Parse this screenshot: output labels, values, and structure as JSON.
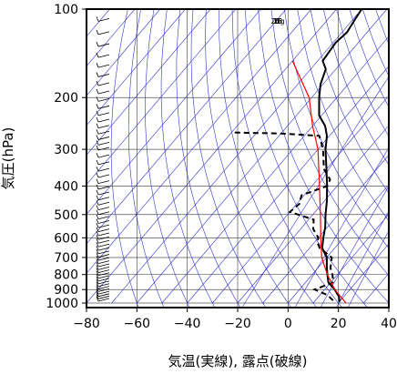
{
  "chart_data": {
    "type": "line",
    "chart_kind": "skew-T log-p thermodynamic diagram",
    "xlabel": "気温(実線), 露点(破線)",
    "ylabel": "気圧(hPa)",
    "x_ticks": [
      "−80",
      "−60",
      "−40",
      "−20",
      "0",
      "20",
      "40"
    ],
    "x_tick_values": [
      -80,
      -60,
      -40,
      -20,
      0,
      20,
      40
    ],
    "xlim": [
      -80,
      40
    ],
    "y_ticks": [
      "100",
      "200",
      "300",
      "400",
      "500",
      "600",
      "700",
      "800",
      "900",
      "1000"
    ],
    "y_tick_values": [
      100,
      200,
      300,
      400,
      500,
      600,
      700,
      800,
      900,
      1000
    ],
    "ylim": [
      100,
      1050
    ],
    "y_scale": "log",
    "mixing_ratio_labels": [
      "1",
      "5",
      "10",
      "15",
      "20g"
    ],
    "mixing_ratio_values": [
      1,
      5,
      10,
      15,
      20
    ],
    "colors": {
      "isotherm_isobar": "#555555",
      "adiabats": "#3333cc",
      "parcel": "#ff0000",
      "temperature": "#000000",
      "dewpoint": "#000000"
    },
    "series": [
      {
        "style": "solid",
        "pressure": [
          990,
          950,
          900,
          850,
          800,
          750,
          700,
          650,
          600,
          550,
          500,
          450,
          400,
          350,
          300,
          270,
          250,
          230,
          200,
          180,
          160,
          150,
          130,
          120,
          110,
          100
        ],
        "values": [
          20,
          18,
          14,
          9,
          6,
          3,
          0,
          -5,
          -8,
          -11,
          -15,
          -19,
          -24,
          -30,
          -37,
          -41,
          -45,
          -51,
          -57,
          -61,
          -64,
          -68,
          -69,
          -68,
          -69,
          -70
        ]
      },
      {
        "style": "dashed",
        "pressure": [
          980,
          940,
          900,
          850,
          800,
          760,
          700,
          650,
          620,
          600,
          560,
          520,
          490,
          460,
          430,
          400,
          380,
          350,
          300,
          270,
          265,
          263
        ],
        "values": [
          17,
          13,
          6,
          11,
          8,
          5,
          2,
          -6,
          -9,
          -10,
          -15,
          -18,
          -30,
          -29,
          -31,
          -24,
          -25,
          -31,
          -38,
          -44,
          -60,
          -80
        ]
      },
      {
        "style": "solid",
        "pressure": [
          1000,
          900,
          800,
          700,
          600,
          500,
          400,
          300,
          250,
          200,
          150
        ],
        "values": [
          23,
          14,
          6,
          -2,
          -9,
          -17,
          -27,
          -40,
          -50,
          -61,
          -80
        ]
      }
    ],
    "wind_barbs": "wind barbs along left edge at each pressure level"
  }
}
